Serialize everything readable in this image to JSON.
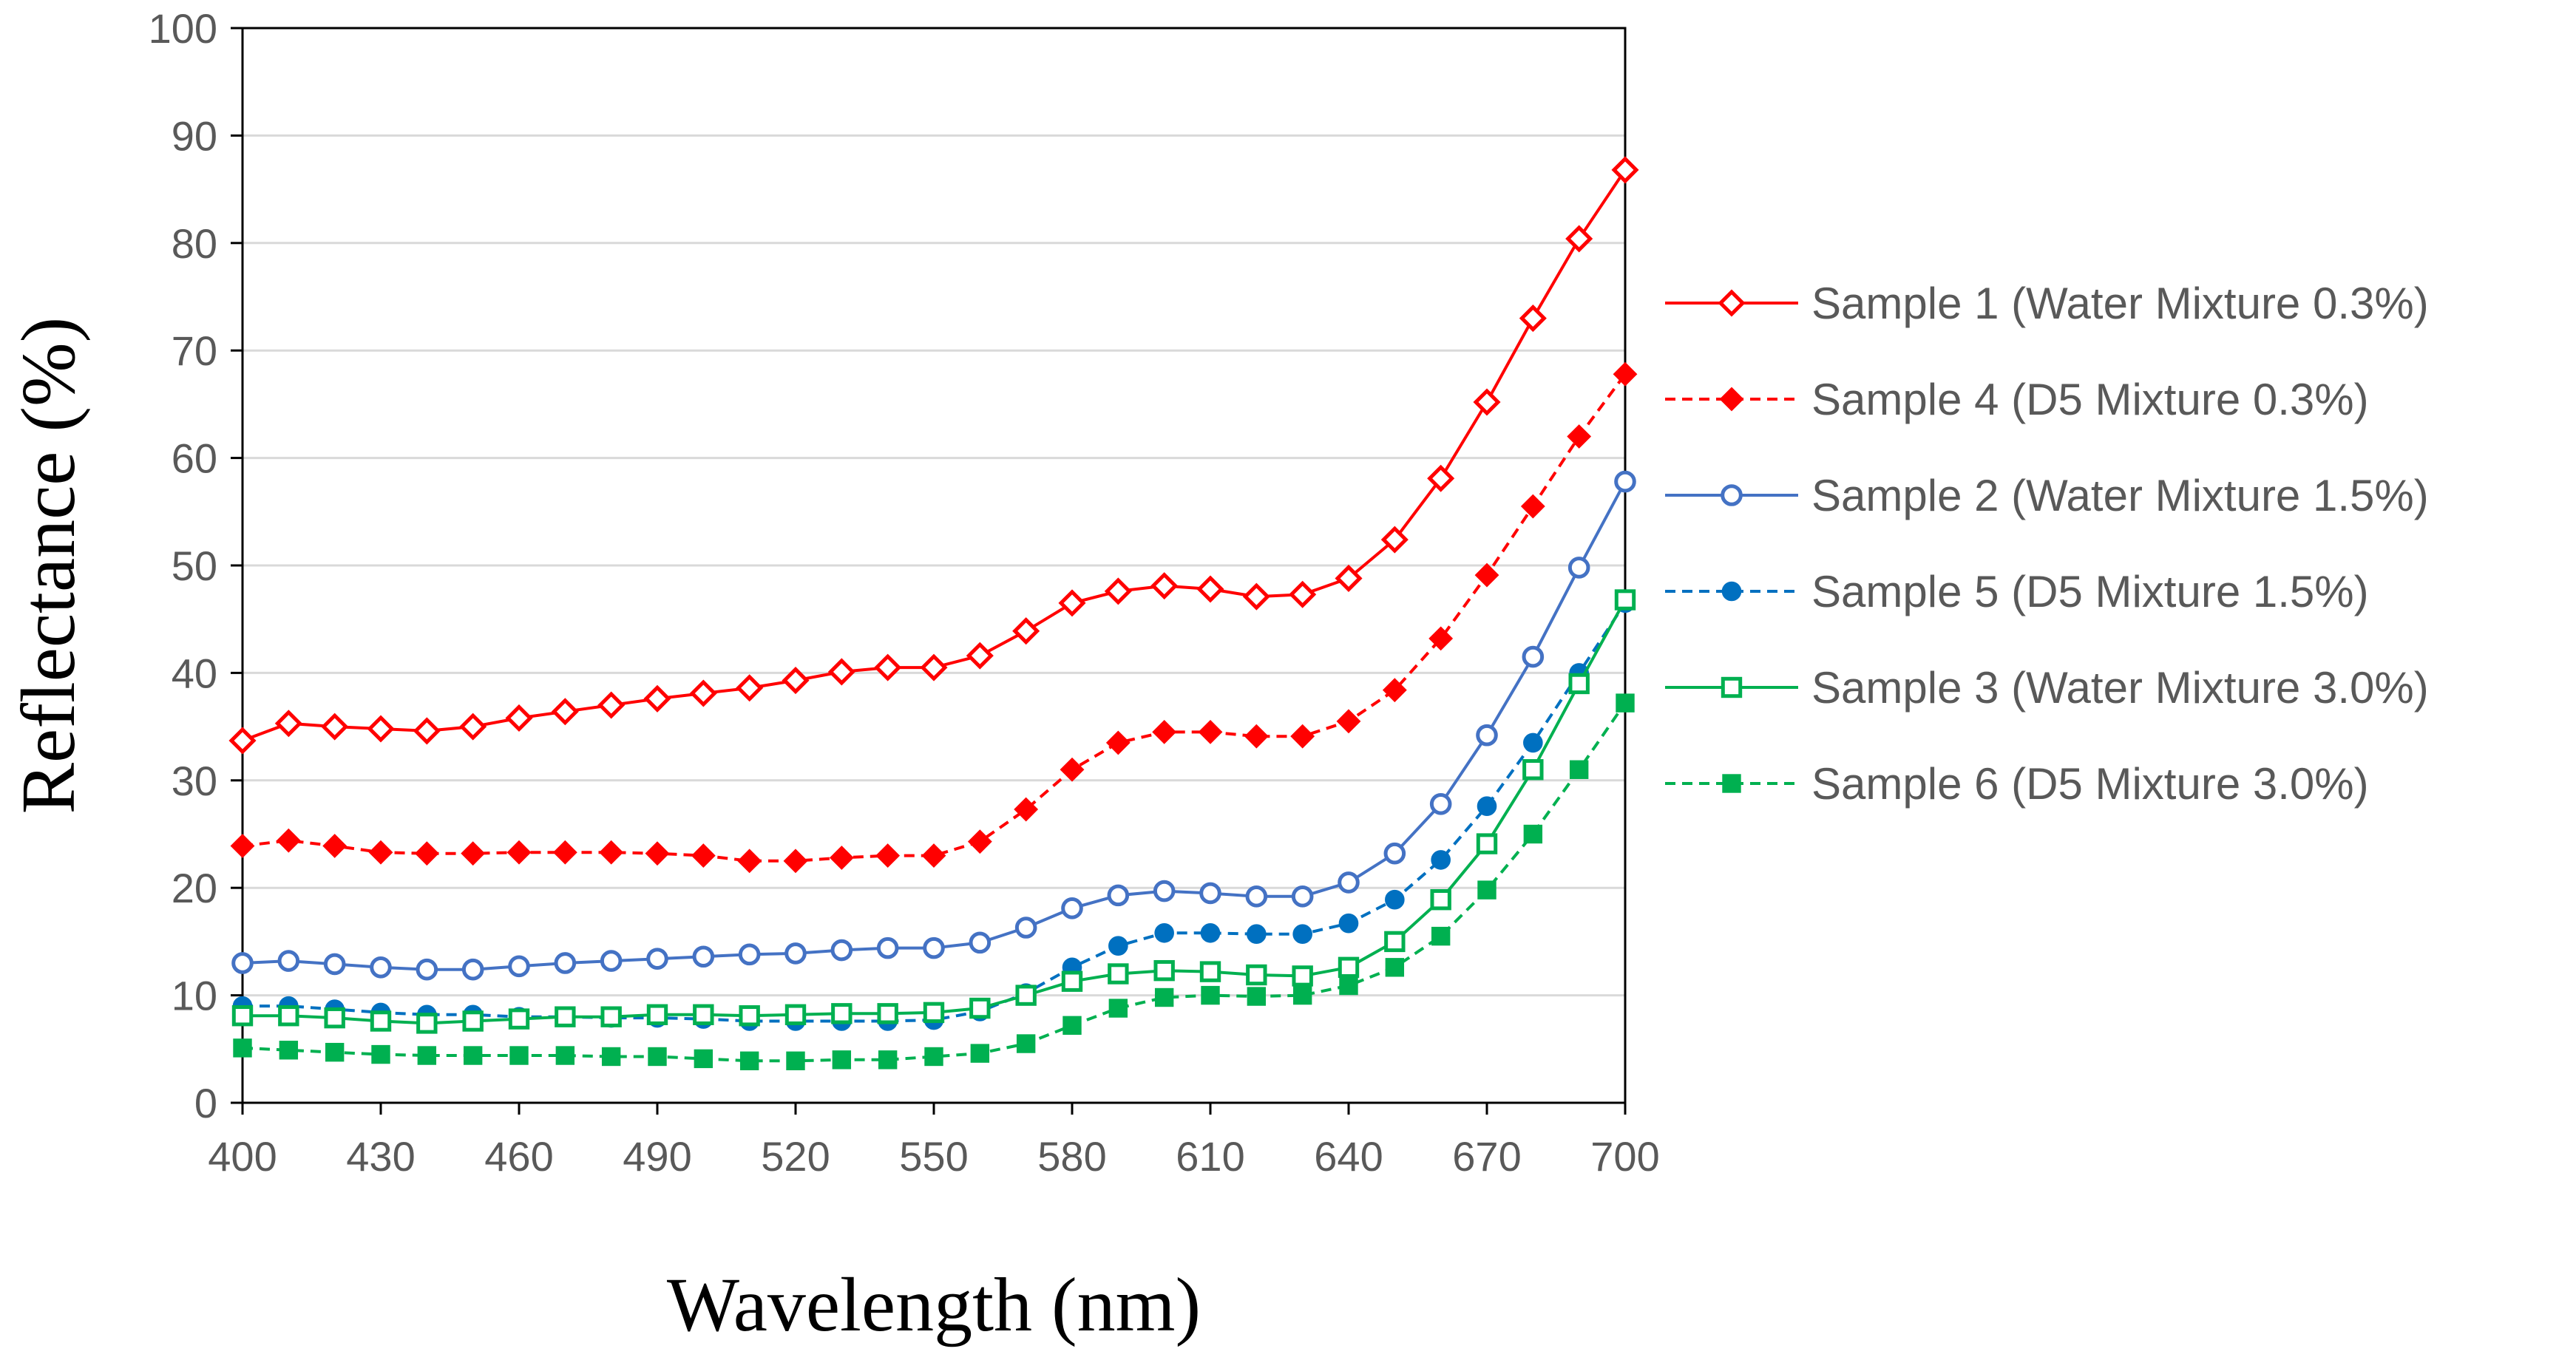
{
  "chart_data": {
    "type": "line",
    "xlabel": "Wavelength (nm)",
    "ylabel": "Reflectance (%)",
    "xlim": [
      400,
      700
    ],
    "ylim": [
      0,
      100
    ],
    "x_ticks": [
      "400",
      "430",
      "460",
      "490",
      "520",
      "550",
      "580",
      "610",
      "640",
      "670",
      "700"
    ],
    "y_ticks": [
      "0",
      "10",
      "20",
      "30",
      "40",
      "50",
      "60",
      "70",
      "80",
      "90",
      "100"
    ],
    "grid": "horizontal",
    "legend_position": "right",
    "x": [
      400,
      410,
      420,
      430,
      440,
      450,
      460,
      470,
      480,
      490,
      500,
      510,
      520,
      530,
      540,
      550,
      560,
      570,
      580,
      590,
      600,
      610,
      620,
      630,
      640,
      650,
      660,
      670,
      680,
      690,
      700
    ],
    "series": [
      {
        "name": "Sample 1 (Water Mixture 0.3%)",
        "color": "#ff0000",
        "dash": "solid",
        "marker": "diamond-open",
        "values": [
          33.7,
          35.3,
          35.0,
          34.8,
          34.6,
          35.0,
          35.8,
          36.4,
          37.0,
          37.6,
          38.1,
          38.6,
          39.3,
          40.1,
          40.5,
          40.5,
          41.6,
          43.9,
          46.5,
          47.6,
          48.1,
          47.8,
          47.1,
          47.3,
          48.8,
          52.4,
          58.1,
          65.2,
          73.0,
          80.4,
          86.8
        ]
      },
      {
        "name": "Sample 4 (D5 Mixture 0.3%)",
        "color": "#ff0000",
        "dash": "dashed",
        "marker": "diamond-filled",
        "values": [
          23.9,
          24.4,
          23.9,
          23.3,
          23.2,
          23.2,
          23.3,
          23.3,
          23.3,
          23.2,
          23.0,
          22.5,
          22.5,
          22.8,
          23.0,
          23.0,
          24.3,
          27.3,
          31.0,
          33.5,
          34.5,
          34.5,
          34.1,
          34.1,
          35.5,
          38.4,
          43.2,
          49.1,
          55.5,
          62.0,
          67.8
        ]
      },
      {
        "name": "Sample 2 (Water Mixture 1.5%)",
        "color": "#4472c4",
        "dash": "solid",
        "marker": "circle-open",
        "values": [
          13.0,
          13.2,
          12.9,
          12.6,
          12.4,
          12.4,
          12.7,
          13.0,
          13.2,
          13.4,
          13.6,
          13.8,
          13.9,
          14.2,
          14.4,
          14.4,
          14.9,
          16.3,
          18.1,
          19.3,
          19.7,
          19.5,
          19.2,
          19.2,
          20.5,
          23.2,
          27.8,
          34.2,
          41.5,
          49.8,
          57.8
        ]
      },
      {
        "name": "Sample 5 (D5 Mixture 1.5%)",
        "color": "#0070c0",
        "dash": "dashed",
        "marker": "circle-filled",
        "values": [
          9.0,
          9.0,
          8.7,
          8.4,
          8.2,
          8.2,
          8.0,
          8.0,
          7.9,
          7.9,
          7.8,
          7.6,
          7.6,
          7.6,
          7.6,
          7.7,
          8.5,
          10.2,
          12.6,
          14.6,
          15.8,
          15.8,
          15.7,
          15.7,
          16.7,
          18.9,
          22.6,
          27.6,
          33.5,
          40.0,
          46.5
        ]
      },
      {
        "name": "Sample 3 (Water Mixture 3.0%)",
        "color": "#00b050",
        "dash": "solid",
        "marker": "square-open",
        "values": [
          8.1,
          8.1,
          7.9,
          7.6,
          7.4,
          7.6,
          7.8,
          8.0,
          8.0,
          8.2,
          8.2,
          8.1,
          8.2,
          8.3,
          8.3,
          8.4,
          8.8,
          10.0,
          11.3,
          12.0,
          12.3,
          12.2,
          11.9,
          11.8,
          12.6,
          15.0,
          18.9,
          24.1,
          31.0,
          39.0,
          46.8
        ]
      },
      {
        "name": "Sample 6 (D5 Mixture 3.0%)",
        "color": "#00b050",
        "dash": "dashed",
        "marker": "square-filled",
        "values": [
          5.1,
          4.9,
          4.7,
          4.5,
          4.4,
          4.4,
          4.4,
          4.4,
          4.3,
          4.3,
          4.1,
          3.9,
          3.9,
          4.0,
          4.0,
          4.3,
          4.6,
          5.5,
          7.2,
          8.8,
          9.8,
          10.0,
          9.9,
          10.0,
          10.9,
          12.6,
          15.5,
          19.8,
          25.0,
          31.0,
          37.2
        ]
      }
    ]
  }
}
